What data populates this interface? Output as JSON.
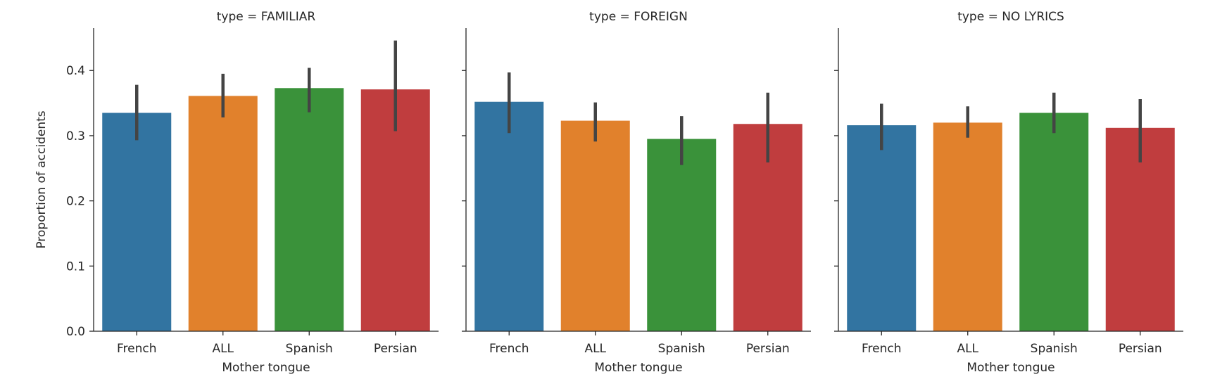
{
  "chart_data": {
    "type": "bar",
    "ylabel": "Proportion of accidents",
    "ylim": [
      0,
      0.465
    ],
    "yticks": [
      0.0,
      0.1,
      0.2,
      0.3,
      0.4
    ],
    "ytick_labels": [
      "0.0",
      "0.1",
      "0.2",
      "0.3",
      "0.4"
    ],
    "colors": [
      "#3274a1",
      "#e1812c",
      "#3a923a",
      "#c03d3e"
    ],
    "panels": [
      {
        "title": "type = FAMILIAR",
        "xlabel": "Mother tongue",
        "categories": [
          "French",
          "ALL",
          "Spanish",
          "Persian"
        ],
        "values": [
          0.335,
          0.361,
          0.373,
          0.371
        ],
        "ci_low": [
          0.293,
          0.328,
          0.336,
          0.307
        ],
        "ci_high": [
          0.378,
          0.395,
          0.404,
          0.446
        ]
      },
      {
        "title": "type = FOREIGN",
        "xlabel": "Mother tongue",
        "categories": [
          "French",
          "ALL",
          "Spanish",
          "Persian"
        ],
        "values": [
          0.352,
          0.323,
          0.295,
          0.318
        ],
        "ci_low": [
          0.304,
          0.291,
          0.255,
          0.259
        ],
        "ci_high": [
          0.397,
          0.351,
          0.33,
          0.366
        ]
      },
      {
        "title": "type = NO LYRICS",
        "xlabel": "Mother tongue",
        "categories": [
          "French",
          "ALL",
          "Spanish",
          "Persian"
        ],
        "values": [
          0.316,
          0.32,
          0.335,
          0.312
        ],
        "ci_low": [
          0.278,
          0.297,
          0.304,
          0.259
        ],
        "ci_high": [
          0.349,
          0.345,
          0.366,
          0.356
        ]
      }
    ]
  }
}
